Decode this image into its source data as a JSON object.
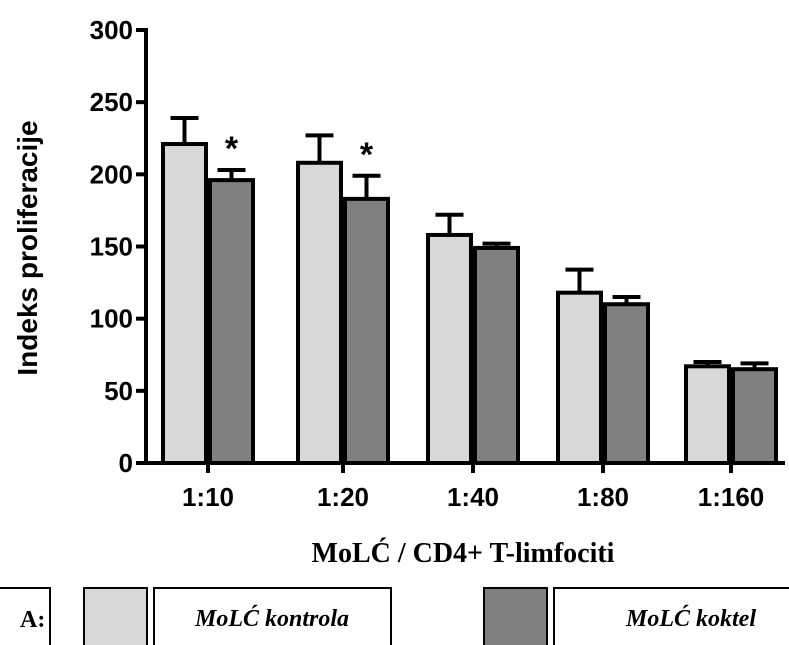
{
  "chart_data": {
    "type": "bar",
    "categories": [
      "1:10",
      "1:20",
      "1:40",
      "1:80",
      "1:160"
    ],
    "series": [
      {
        "name": "MoLĆ kontrola",
        "values": [
          221,
          208,
          158,
          118,
          67
        ],
        "errors": [
          18,
          19,
          14,
          16,
          3
        ],
        "color": "#d8d8d8"
      },
      {
        "name": "MoLĆ koktel",
        "values": [
          196,
          183,
          149,
          110,
          65
        ],
        "errors": [
          7,
          16,
          3,
          5,
          4
        ],
        "color": "#808080"
      }
    ],
    "annotations": [
      {
        "category": "1:10",
        "label": "*"
      },
      {
        "category": "1:20",
        "label": "*"
      }
    ],
    "xlabel": "MoLĆ / CD4+ T-limfociti",
    "ylabel": "Indeks proliferacije",
    "ylim": [
      0,
      300
    ],
    "yticks": [
      0,
      50,
      100,
      150,
      200,
      250,
      300
    ],
    "legend_prefix": "A:",
    "legend_position": "bottom"
  }
}
